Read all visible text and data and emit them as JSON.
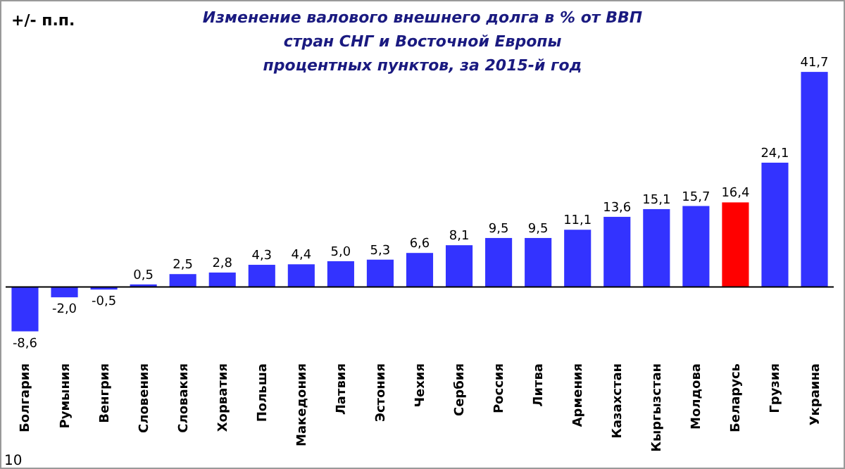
{
  "chart_data": {
    "type": "bar",
    "title": "Изменение валового внешнего долга в % от ВВП\nстран СНГ и Восточной  Европы",
    "subtitle": "процентных пунктов, за 2015-й год",
    "ylabel": "+/- п.п.",
    "categories": [
      "Болгария",
      "Румыния",
      "Венгрия",
      "Словения",
      "Словакия",
      "Хорватия",
      "Польша",
      "Македония",
      "Латвия",
      "Эстония",
      "Чехия",
      "Сербия",
      "Россия",
      "Литва",
      "Армения",
      "Казахстан",
      "Кыргызстан",
      "Молдова",
      "Беларусь",
      "Грузия",
      "Украина"
    ],
    "values": [
      -8.6,
      -2.0,
      -0.5,
      0.5,
      2.5,
      2.8,
      4.3,
      4.4,
      5.0,
      5.3,
      6.6,
      8.1,
      9.5,
      9.5,
      11.1,
      13.6,
      15.1,
      15.7,
      16.4,
      24.1,
      41.7
    ],
    "value_labels": [
      "-8,6",
      "-2,0",
      "-0,5",
      "0,5",
      "2,5",
      "2,8",
      "4,3",
      "4,4",
      "5,0",
      "5,3",
      "6,6",
      "8,1",
      "9,5",
      "9,5",
      "11,1",
      "13,6",
      "15,1",
      "15,7",
      "16,4",
      "24,1",
      "41,7"
    ],
    "colors": [
      "#3333ff",
      "#3333ff",
      "#3333ff",
      "#3333ff",
      "#3333ff",
      "#3333ff",
      "#3333ff",
      "#3333ff",
      "#3333ff",
      "#3333ff",
      "#3333ff",
      "#3333ff",
      "#3333ff",
      "#3333ff",
      "#3333ff",
      "#3333ff",
      "#3333ff",
      "#3333ff",
      "#ff0000",
      "#3333ff",
      "#3333ff"
    ],
    "annotations": [
      "10"
    ]
  }
}
